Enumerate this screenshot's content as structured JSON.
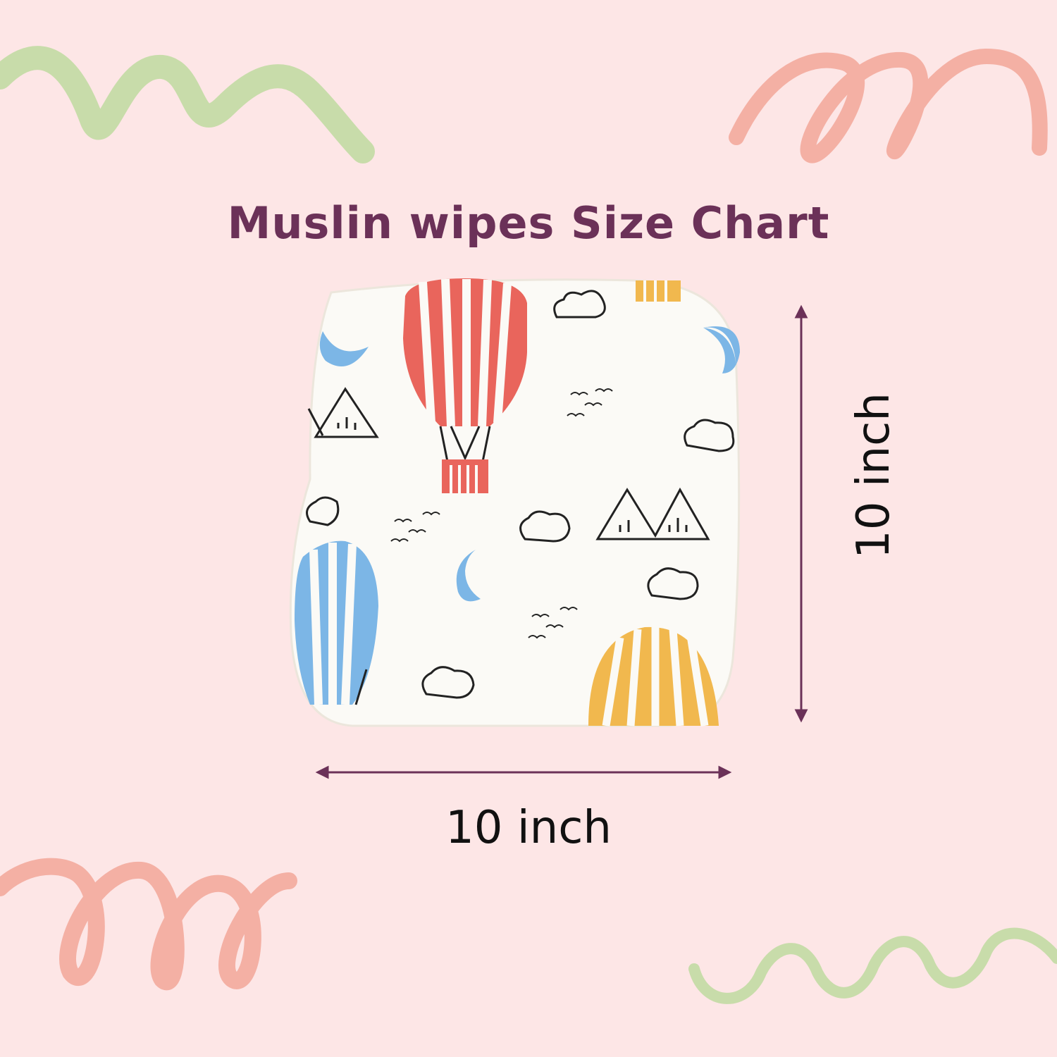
{
  "title": "Muslin wipes Size Chart",
  "dimensions": {
    "width_label": "10 inch",
    "height_label": "10 inch"
  },
  "colors": {
    "background": "#fde6e6",
    "title": "#6b3158",
    "arrow": "#6b3158",
    "label": "#111111",
    "squiggle_green": "#c8dcaa",
    "squiggle_pink": "#f4b0a4",
    "balloon_red": "#e9655c",
    "balloon_blue": "#7cb6e6",
    "balloon_yellow": "#f1b84e",
    "fabric": "#fbfaf6"
  },
  "product": {
    "pattern": [
      "hot-air-balloon",
      "cloud",
      "mountain",
      "moon",
      "bird"
    ]
  }
}
